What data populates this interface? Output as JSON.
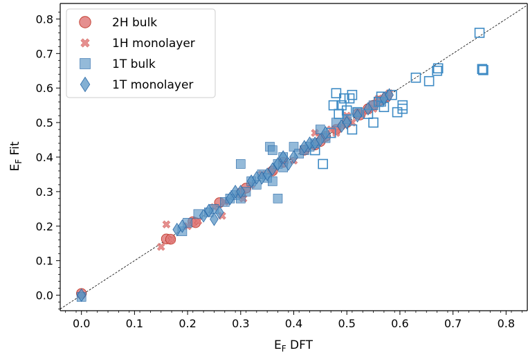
{
  "colors": {
    "red_fill": "#e07b7b",
    "red_dark": "#c0392b",
    "blue_fill": "#5b95c4",
    "blue_dark": "#2a6aa8",
    "blue_open": "#3d8ac4"
  },
  "chart_data": {
    "type": "scatter",
    "title": "",
    "xlabel_main": "E",
    "xlabel_sub": "F",
    "xlabel_rest": " DFT",
    "ylabel_main": "E",
    "ylabel_sub": "F",
    "ylabel_rest": " Fit",
    "xlim": [
      -0.04,
      0.84
    ],
    "ylim": [
      -0.045,
      0.845
    ],
    "xticks": [
      "0.0",
      "0.1",
      "0.2",
      "0.3",
      "0.4",
      "0.5",
      "0.6",
      "0.7",
      "0.8"
    ],
    "yticks": [
      "0.0",
      "0.1",
      "0.2",
      "0.3",
      "0.4",
      "0.5",
      "0.6",
      "0.7",
      "0.8"
    ],
    "legend_position": "top-left",
    "reference_line": "y = x (dashed)",
    "series": [
      {
        "name": "2H bulk",
        "marker": "circle",
        "points": [
          [
            0.0,
            0.005
          ],
          [
            0.16,
            0.163
          ],
          [
            0.168,
            0.162
          ],
          [
            0.21,
            0.213
          ],
          [
            0.215,
            0.21
          ],
          [
            0.26,
            0.268
          ],
          [
            0.3,
            0.295
          ],
          [
            0.31,
            0.31
          ],
          [
            0.36,
            0.36
          ],
          [
            0.38,
            0.385
          ],
          [
            0.42,
            0.42
          ],
          [
            0.44,
            0.435
          ],
          [
            0.45,
            0.445
          ],
          [
            0.46,
            0.46
          ],
          [
            0.48,
            0.48
          ],
          [
            0.5,
            0.5
          ],
          [
            0.52,
            0.525
          ],
          [
            0.525,
            0.522
          ],
          [
            0.54,
            0.54
          ],
          [
            0.55,
            0.55
          ],
          [
            0.56,
            0.562
          ],
          [
            0.575,
            0.575
          ]
        ]
      },
      {
        "name": "1H monolayer",
        "marker": "x",
        "points": [
          [
            0.0,
            0.0
          ],
          [
            0.15,
            0.14
          ],
          [
            0.16,
            0.205
          ],
          [
            0.17,
            0.16
          ],
          [
            0.2,
            0.2
          ],
          [
            0.22,
            0.215
          ],
          [
            0.25,
            0.255
          ],
          [
            0.265,
            0.23
          ],
          [
            0.27,
            0.27
          ],
          [
            0.3,
            0.3
          ],
          [
            0.305,
            0.28
          ],
          [
            0.32,
            0.32
          ],
          [
            0.34,
            0.35
          ],
          [
            0.36,
            0.36
          ],
          [
            0.4,
            0.39
          ],
          [
            0.42,
            0.42
          ],
          [
            0.44,
            0.47
          ],
          [
            0.45,
            0.46
          ],
          [
            0.47,
            0.48
          ],
          [
            0.48,
            0.47
          ],
          [
            0.49,
            0.49
          ],
          [
            0.5,
            0.52
          ],
          [
            0.51,
            0.5
          ],
          [
            0.53,
            0.53
          ],
          [
            0.54,
            0.535
          ],
          [
            0.55,
            0.54
          ],
          [
            0.56,
            0.57
          ],
          [
            0.575,
            0.57
          ],
          [
            0.58,
            0.585
          ]
        ]
      },
      {
        "name": "1T bulk",
        "marker": "square",
        "points": [
          [
            0.0,
            -0.005
          ],
          [
            0.19,
            0.185
          ],
          [
            0.2,
            0.21
          ],
          [
            0.22,
            0.235
          ],
          [
            0.24,
            0.24
          ],
          [
            0.25,
            0.25
          ],
          [
            0.27,
            0.27
          ],
          [
            0.28,
            0.28
          ],
          [
            0.29,
            0.29
          ],
          [
            0.3,
            0.28
          ],
          [
            0.3,
            0.38
          ],
          [
            0.31,
            0.3
          ],
          [
            0.32,
            0.33
          ],
          [
            0.33,
            0.32
          ],
          [
            0.34,
            0.35
          ],
          [
            0.35,
            0.34
          ],
          [
            0.355,
            0.43
          ],
          [
            0.36,
            0.42
          ],
          [
            0.36,
            0.33
          ],
          [
            0.37,
            0.38
          ],
          [
            0.37,
            0.28
          ],
          [
            0.38,
            0.37
          ],
          [
            0.38,
            0.4
          ],
          [
            0.4,
            0.43
          ],
          [
            0.41,
            0.41
          ],
          [
            0.42,
            0.42
          ],
          [
            0.43,
            0.43
          ],
          [
            0.44,
            0.44
          ],
          [
            0.45,
            0.48
          ],
          [
            0.46,
            0.455
          ],
          [
            0.48,
            0.5
          ],
          [
            0.5,
            0.51
          ],
          [
            0.52,
            0.53
          ],
          [
            0.55,
            0.55
          ],
          [
            0.565,
            0.56
          ]
        ]
      },
      {
        "name": "1T bulk (open)",
        "marker": "square-open",
        "points": [
          [
            0.44,
            0.42
          ],
          [
            0.455,
            0.38
          ],
          [
            0.47,
            0.47
          ],
          [
            0.475,
            0.55
          ],
          [
            0.48,
            0.585
          ],
          [
            0.485,
            0.525
          ],
          [
            0.49,
            0.55
          ],
          [
            0.495,
            0.57
          ],
          [
            0.5,
            0.535
          ],
          [
            0.505,
            0.57
          ],
          [
            0.51,
            0.58
          ],
          [
            0.51,
            0.48
          ],
          [
            0.52,
            0.53
          ],
          [
            0.54,
            0.525
          ],
          [
            0.55,
            0.5
          ],
          [
            0.56,
            0.56
          ],
          [
            0.565,
            0.575
          ],
          [
            0.57,
            0.545
          ],
          [
            0.585,
            0.58
          ],
          [
            0.595,
            0.53
          ],
          [
            0.605,
            0.54
          ],
          [
            0.605,
            0.55
          ],
          [
            0.63,
            0.63
          ],
          [
            0.655,
            0.62
          ],
          [
            0.67,
            0.65
          ],
          [
            0.672,
            0.657
          ],
          [
            0.75,
            0.76
          ],
          [
            0.755,
            0.655
          ],
          [
            0.757,
            0.652
          ]
        ]
      },
      {
        "name": "1T monolayer",
        "marker": "diamond",
        "points": [
          [
            0.0,
            0.0
          ],
          [
            0.18,
            0.19
          ],
          [
            0.19,
            0.2
          ],
          [
            0.23,
            0.23
          ],
          [
            0.24,
            0.245
          ],
          [
            0.25,
            0.22
          ],
          [
            0.26,
            0.24
          ],
          [
            0.28,
            0.28
          ],
          [
            0.29,
            0.3
          ],
          [
            0.3,
            0.3
          ],
          [
            0.32,
            0.33
          ],
          [
            0.33,
            0.34
          ],
          [
            0.34,
            0.34
          ],
          [
            0.35,
            0.35
          ],
          [
            0.36,
            0.365
          ],
          [
            0.37,
            0.38
          ],
          [
            0.38,
            0.4
          ],
          [
            0.39,
            0.38
          ],
          [
            0.4,
            0.4
          ],
          [
            0.42,
            0.43
          ],
          [
            0.43,
            0.44
          ],
          [
            0.44,
            0.44
          ],
          [
            0.45,
            0.45
          ],
          [
            0.46,
            0.47
          ],
          [
            0.49,
            0.49
          ],
          [
            0.5,
            0.5
          ],
          [
            0.52,
            0.52
          ],
          [
            0.54,
            0.54
          ],
          [
            0.57,
            0.57
          ],
          [
            0.58,
            0.58
          ]
        ]
      }
    ],
    "legend": [
      {
        "label": "2H bulk",
        "marker": "circle"
      },
      {
        "label": "1H monolayer",
        "marker": "x"
      },
      {
        "label": "1T bulk",
        "marker": "square"
      },
      {
        "label": "1T monolayer",
        "marker": "diamond"
      }
    ]
  }
}
